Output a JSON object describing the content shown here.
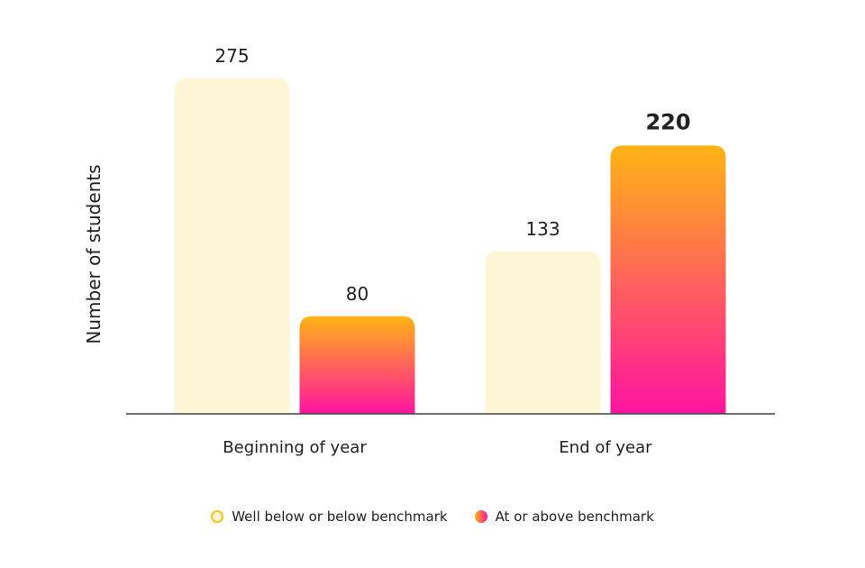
{
  "chart_data": {
    "type": "bar",
    "ylabel": "Number of students",
    "categories": [
      "Beginning of year",
      "End of year"
    ],
    "series": [
      {
        "name": "Well below or below benchmark",
        "values": [
          275,
          133
        ]
      },
      {
        "name": "At or above benchmark",
        "values": [
          80,
          220
        ]
      }
    ],
    "ylim": [
      0,
      275
    ],
    "grid": false,
    "legend_position": "bottom",
    "colors": {
      "below_fill": "#FDF6D6",
      "below_stroke": "#F5C518",
      "above_top": "#FFB414",
      "above_bottom": "#FF14A0"
    },
    "data_labels": [
      "275",
      "80",
      "133",
      "220"
    ]
  }
}
